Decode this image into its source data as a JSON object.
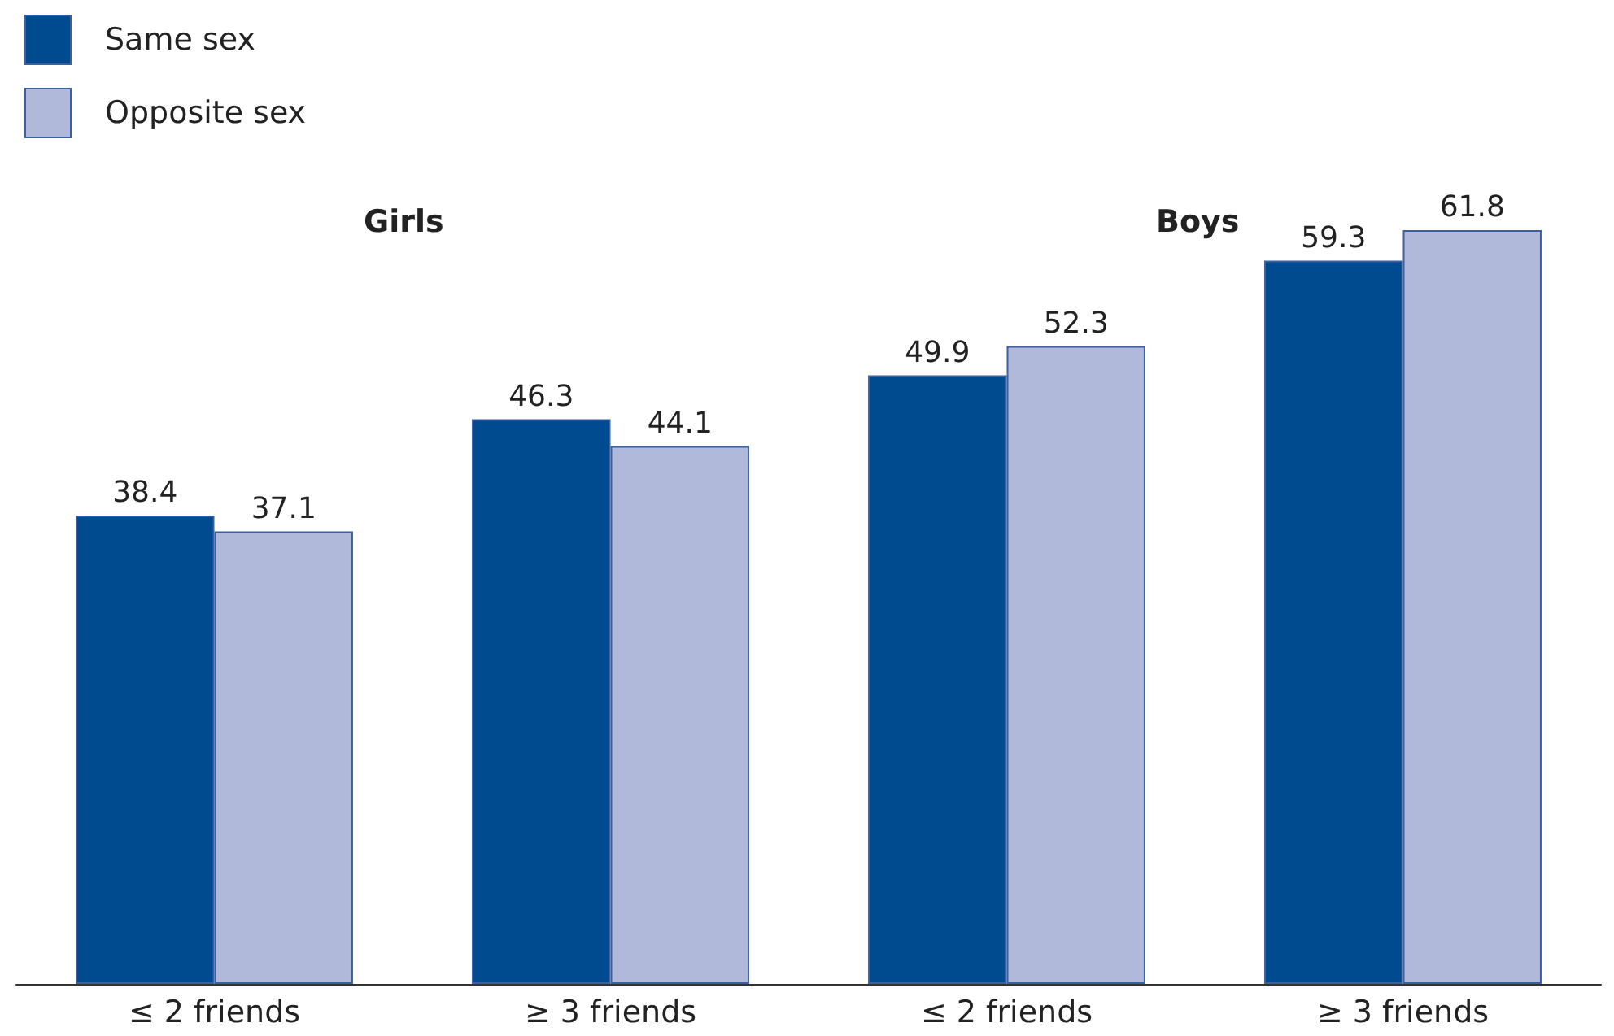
{
  "chart_data": {
    "type": "bar",
    "categories": [
      "≤ 2 friends",
      "≥ 3 friends",
      "≤ 2 friends",
      "≥ 3 friends"
    ],
    "series": [
      {
        "name": "Same sex",
        "color": "#004a8f",
        "values": [
          38.4,
          46.3,
          49.9,
          59.3
        ]
      },
      {
        "name": "Opposite sex",
        "color": "#b0b9d9",
        "values": [
          37.1,
          44.1,
          52.3,
          61.8
        ]
      }
    ],
    "annotations": [
      "Girls",
      "Boys"
    ],
    "data_labels": true,
    "legend": "top left"
  }
}
